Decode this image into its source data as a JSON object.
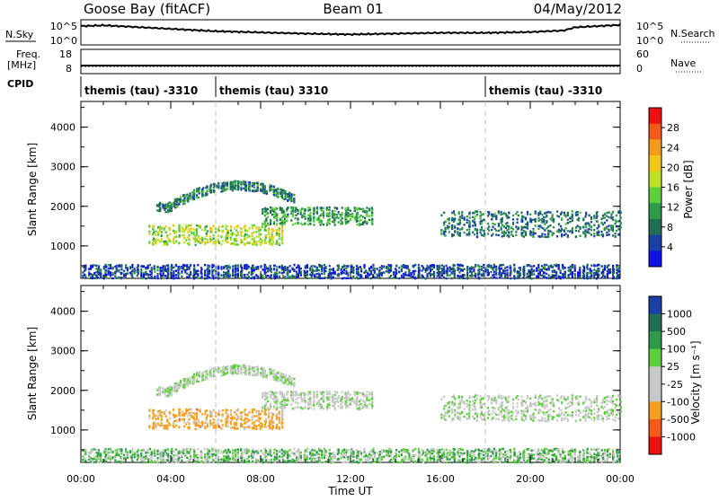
{
  "header": {
    "station": "Goose Bay (fitACF)",
    "beam": "Beam 01",
    "date": "04/May/2012"
  },
  "strip_labels": {
    "nsky": "N.Sky",
    "nsky_ticks": [
      "10^5",
      "10^0"
    ],
    "nsearch": "N.Search",
    "freq": "Freq.",
    "freq_unit": "[MHz]",
    "freq_ticks": [
      "18",
      "8"
    ],
    "nave": "Nave",
    "nave_ticks": [
      "60",
      "0"
    ],
    "cpid": "CPID"
  },
  "cpid_segments": [
    {
      "label": "themis (tau) -3310",
      "start_h": 0,
      "end_h": 6
    },
    {
      "label": "themis (tau) 3310",
      "start_h": 6,
      "end_h": 18
    },
    {
      "label": "themis (tau) -3310",
      "start_h": 18,
      "end_h": 24
    }
  ],
  "power_colorbar": {
    "title": "Power [dB]",
    "ticks": [
      "28",
      "24",
      "20",
      "16",
      "12",
      "8",
      "4"
    ],
    "colors": [
      "#ee1010",
      "#f25a18",
      "#f59b1c",
      "#f2c818",
      "#bfe02a",
      "#5bd03a",
      "#2f9a4a",
      "#1f6e55",
      "#1a3fa8",
      "#1010e8"
    ]
  },
  "velocity_colorbar": {
    "title": "Velocity [m s⁻¹]",
    "ticks": [
      "1000",
      "500",
      "100",
      "25",
      "-25",
      "-100",
      "-500",
      "-1000"
    ],
    "colors": [
      "#1a3fa8",
      "#1f6e55",
      "#2f9a4a",
      "#5bd03a",
      "#c8c8c8",
      "#c8c8c8",
      "#f5a020",
      "#f25a18",
      "#ee1010"
    ]
  },
  "chart_data": {
    "type": "heatmap",
    "x_axis": {
      "label": "Time UT",
      "range_hours": [
        0,
        24
      ],
      "ticks": [
        "00:00",
        "04:00",
        "08:00",
        "12:00",
        "16:00",
        "20:00",
        "00:00"
      ]
    },
    "y_axis": {
      "label": "Slant Range [km]",
      "range_km": [
        180,
        4650
      ],
      "ticks": [
        "1000",
        "2000",
        "3000",
        "4000"
      ]
    },
    "nsky_trace_log10": [
      [
        0,
        4.3
      ],
      [
        1,
        4.5
      ],
      [
        2,
        4.2
      ],
      [
        4,
        3.6
      ],
      [
        6,
        3.0
      ],
      [
        8,
        2.7
      ],
      [
        10,
        2.4
      ],
      [
        12,
        2.2
      ],
      [
        14,
        2.4
      ],
      [
        16,
        2.6
      ],
      [
        18,
        2.6
      ],
      [
        20,
        2.8
      ],
      [
        21.5,
        3.2
      ],
      [
        22,
        4.0
      ],
      [
        23,
        4.3
      ],
      [
        24,
        4.6
      ]
    ],
    "scatter_regions": [
      {
        "name": "upper arc",
        "t_start": 3.3,
        "t_end": 9.5,
        "range_peak": 2550,
        "range_base": 2000,
        "power_db": 10,
        "velocity": 15
      },
      {
        "name": "lower band",
        "t_start": 3.0,
        "t_end": 9.0,
        "range_low": 1050,
        "range_high": 1550,
        "power_db": 18,
        "velocity": -150
      },
      {
        "name": "mid band",
        "t_start": 8.0,
        "t_end": 13.0,
        "range_low": 1550,
        "range_high": 2000,
        "power_db": 12,
        "velocity": 5
      },
      {
        "name": "evening band",
        "t_start": 16.0,
        "t_end": 24.0,
        "range_low": 1250,
        "range_high": 1900,
        "power_db": 9,
        "velocity": 10
      },
      {
        "name": "near-range clutter",
        "t_start": 0.0,
        "t_end": 24.0,
        "range_low": 200,
        "range_high": 550,
        "power_db": 6,
        "velocity": 40
      }
    ]
  }
}
